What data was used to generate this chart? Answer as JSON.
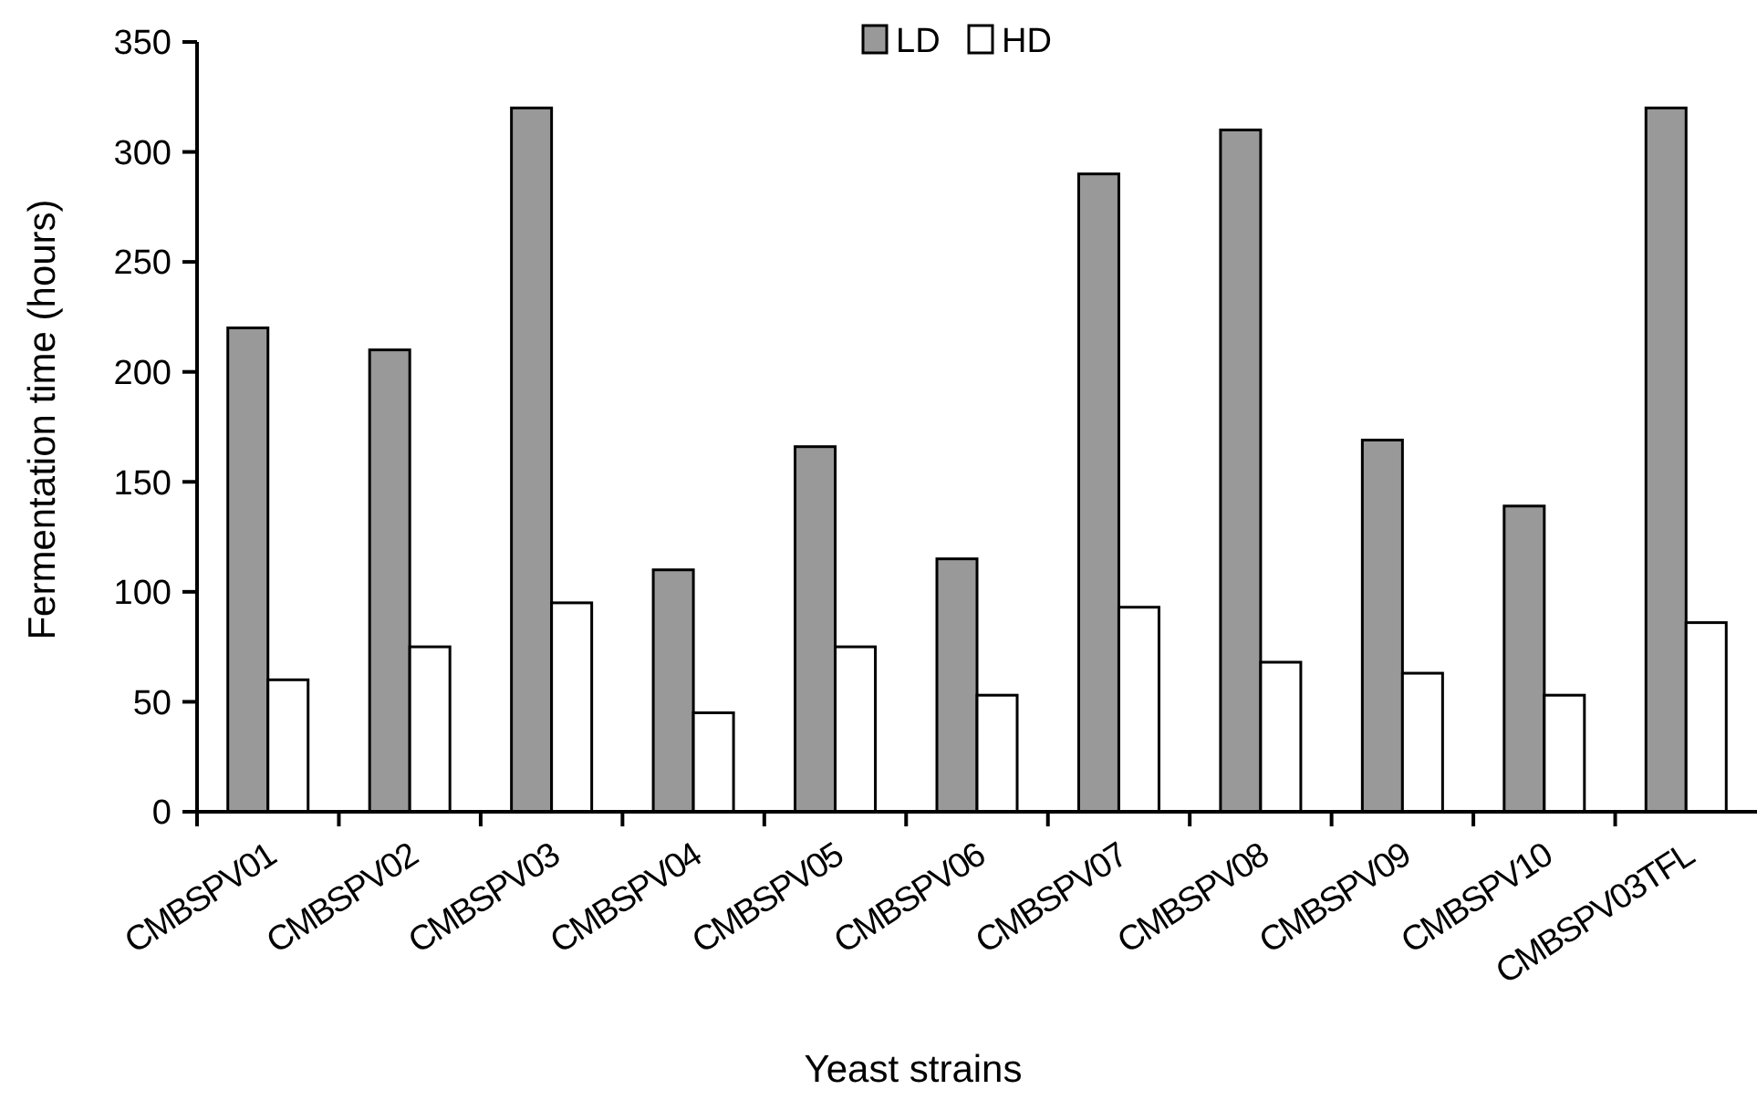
{
  "chart_data": {
    "type": "bar",
    "xlabel": "Yeast strains",
    "ylabel": "Fermentation time (hours)",
    "categories": [
      "CMBSPV01",
      "CMBSPV02",
      "CMBSPV03",
      "CMBSPV04",
      "CMBSPV05",
      "CMBSPV06",
      "CMBSPV07",
      "CMBSPV08",
      "CMBSPV09",
      "CMBSPV10",
      "CMBSPV03TFL"
    ],
    "series": [
      {
        "name": "LD",
        "color": "#999999",
        "values": [
          220,
          210,
          320,
          110,
          166,
          115,
          290,
          310,
          169,
          139,
          320
        ]
      },
      {
        "name": "HD",
        "color": "#ffffff",
        "values": [
          60,
          75,
          95,
          45,
          75,
          53,
          93,
          68,
          63,
          53,
          86
        ]
      }
    ],
    "ylim": [
      0,
      350
    ],
    "yticks": [
      0,
      50,
      100,
      150,
      200,
      250,
      300,
      350
    ],
    "grid": false,
    "legend": "top"
  }
}
